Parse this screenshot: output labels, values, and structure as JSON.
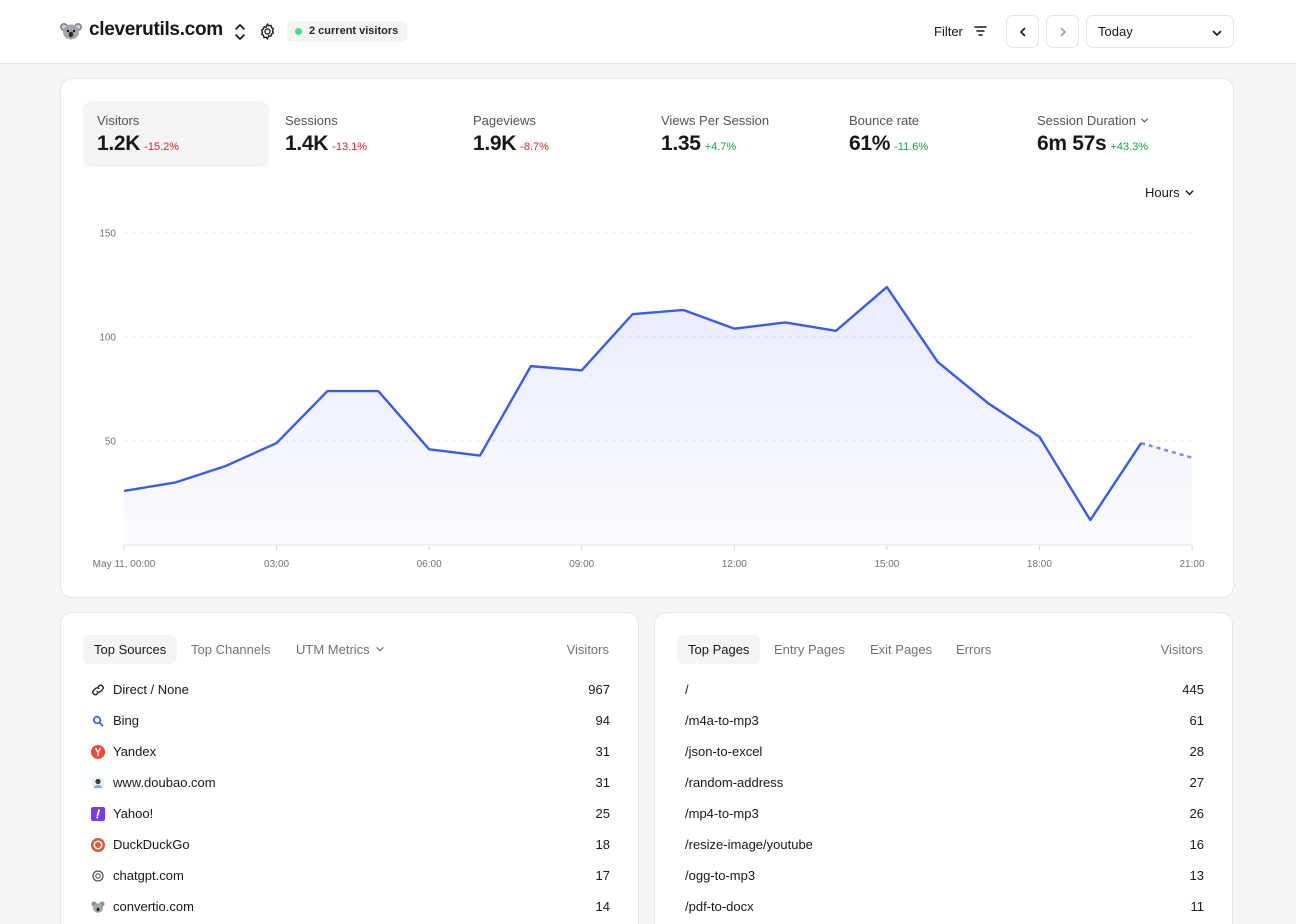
{
  "header": {
    "site_name": "cleverutils.com",
    "live_visitors": "2 current visitors",
    "filter_label": "Filter",
    "date_range": "Today"
  },
  "metrics": [
    {
      "label": "Visitors",
      "value": "1.2K",
      "delta": "-15.2%",
      "trend": "negative",
      "active": true
    },
    {
      "label": "Sessions",
      "value": "1.4K",
      "delta": "-13.1%",
      "trend": "negative"
    },
    {
      "label": "Pageviews",
      "value": "1.9K",
      "delta": "-8.7%",
      "trend": "negative"
    },
    {
      "label": "Views Per Session",
      "value": "1.35",
      "delta": "+4.7%",
      "trend": "positive"
    },
    {
      "label": "Bounce rate",
      "value": "61%",
      "delta": "-11.6%",
      "trend": "positive"
    },
    {
      "label": "Session Duration",
      "value": "6m 57s",
      "delta": "+43.3%",
      "trend": "positive"
    }
  ],
  "granularity": "Hours",
  "chart_data": {
    "type": "area",
    "x": [
      "May 11, 00:00",
      "01:00",
      "02:00",
      "03:00",
      "04:00",
      "05:00",
      "06:00",
      "07:00",
      "08:00",
      "09:00",
      "10:00",
      "11:00",
      "12:00",
      "13:00",
      "14:00",
      "15:00",
      "16:00",
      "17:00",
      "18:00",
      "19:00",
      "20:00",
      "21:00"
    ],
    "xticks": [
      "May 11, 00:00",
      "03:00",
      "06:00",
      "09:00",
      "12:00",
      "15:00",
      "18:00",
      "21:00"
    ],
    "series": [
      {
        "values": [
          26,
          30,
          38,
          49,
          74,
          74,
          46,
          43,
          86,
          84,
          111,
          113,
          104,
          107,
          103,
          124,
          88,
          68,
          52,
          12,
          49,
          42
        ],
        "projected_from_index": 20
      }
    ],
    "yticks": [
      50,
      100,
      150
    ],
    "ylim": [
      0,
      150
    ],
    "grid": true,
    "color": "#3b5bf0"
  },
  "sources": {
    "tabs": [
      "Top Sources",
      "Top Channels",
      "UTM Metrics"
    ],
    "column": "Visitors",
    "rows": [
      {
        "name": "Direct / None",
        "value": "967",
        "icon": "link-icon"
      },
      {
        "name": "Bing",
        "value": "94",
        "icon": "bing-icon"
      },
      {
        "name": "Yandex",
        "value": "31",
        "icon": "yandex-icon"
      },
      {
        "name": "www.doubao.com",
        "value": "31",
        "icon": "doubao-icon"
      },
      {
        "name": "Yahoo!",
        "value": "25",
        "icon": "yahoo-icon"
      },
      {
        "name": "DuckDuckGo",
        "value": "18",
        "icon": "duckduckgo-icon"
      },
      {
        "name": "chatgpt.com",
        "value": "17",
        "icon": "chatgpt-icon"
      },
      {
        "name": "convertio.com",
        "value": "14",
        "icon": "convertio-icon"
      }
    ]
  },
  "pages": {
    "tabs": [
      "Top Pages",
      "Entry Pages",
      "Exit Pages",
      "Errors"
    ],
    "column": "Visitors",
    "rows": [
      {
        "name": "/",
        "value": "445"
      },
      {
        "name": "/m4a-to-mp3",
        "value": "61"
      },
      {
        "name": "/json-to-excel",
        "value": "28"
      },
      {
        "name": "/random-address",
        "value": "27"
      },
      {
        "name": "/mp4-to-mp3",
        "value": "26"
      },
      {
        "name": "/resize-image/youtube",
        "value": "16"
      },
      {
        "name": "/ogg-to-mp3",
        "value": "13"
      },
      {
        "name": "/pdf-to-docx",
        "value": "11"
      }
    ]
  },
  "colors": {
    "accent": "#3b5bf0",
    "negative": "#dc2626",
    "positive": "#16a34a",
    "live": "#4ade80"
  }
}
